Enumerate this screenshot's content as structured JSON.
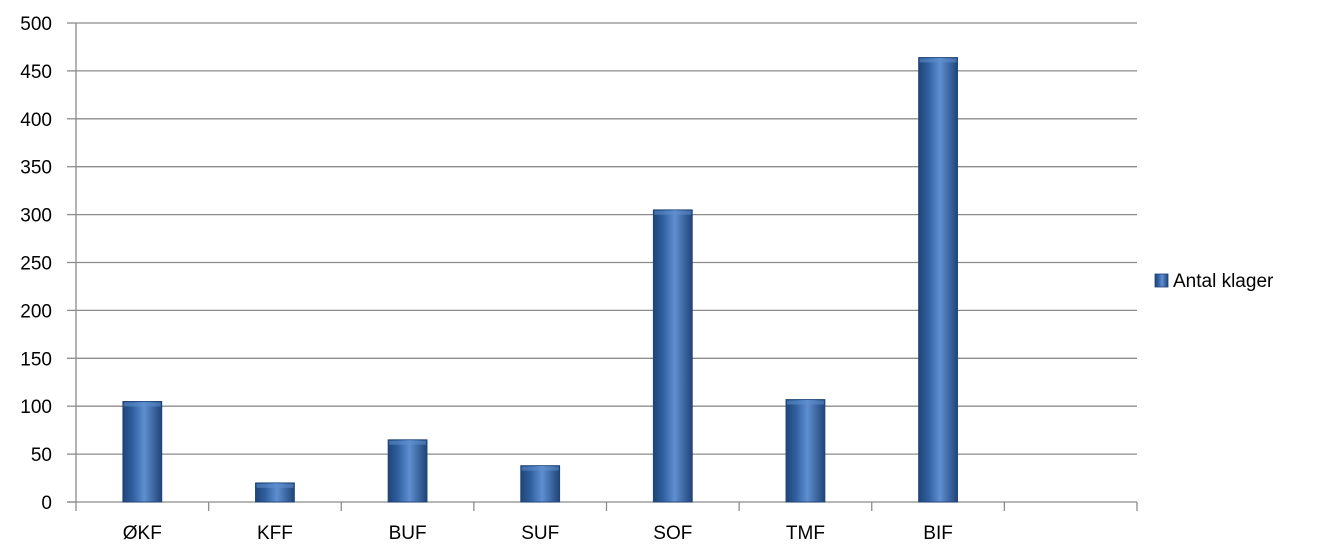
{
  "chart_data": {
    "type": "bar",
    "title": "",
    "xlabel": "",
    "ylabel": "",
    "categories": [
      "ØKF",
      "KFF",
      "BUF",
      "SUF",
      "SOF",
      "TMF",
      "BIF",
      ""
    ],
    "series": [
      {
        "name": "Antal klager",
        "values": [
          105,
          20,
          65,
          38,
          305,
          107,
          464,
          null
        ]
      }
    ],
    "ylim": [
      0,
      500
    ],
    "yticks": [
      0,
      50,
      100,
      150,
      200,
      250,
      300,
      350,
      400,
      450,
      500
    ],
    "grid": true,
    "legend_position": "right",
    "colors": {
      "bar": "#2f5f9e",
      "bar_light": "#5f8fd0",
      "bar_dark": "#1f4478",
      "grid": "#8c8c8c",
      "axis": "#8c8c8c"
    }
  }
}
